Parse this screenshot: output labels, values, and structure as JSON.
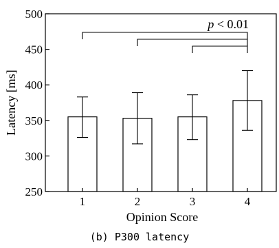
{
  "chart_data": {
    "type": "bar",
    "categories": [
      "1",
      "2",
      "3",
      "4"
    ],
    "values": [
      355,
      353,
      355,
      378
    ],
    "error_bars": {
      "lower": [
        326,
        317,
        323,
        336
      ],
      "upper": [
        383,
        389,
        386,
        420
      ]
    },
    "xlabel": "Opinion Score",
    "ylabel": "Latency [ms]",
    "ylim": [
      250,
      500
    ],
    "yticks": [
      250,
      300,
      350,
      400,
      450,
      500
    ],
    "grid": false,
    "significance": {
      "text_prefix": "p",
      "text_suffix": " < 0.01",
      "comparisons": [
        {
          "from": "1",
          "to": "4"
        },
        {
          "from": "2",
          "to": "4"
        },
        {
          "from": "3",
          "to": "4"
        }
      ]
    }
  },
  "caption": "(b) P300 latency"
}
